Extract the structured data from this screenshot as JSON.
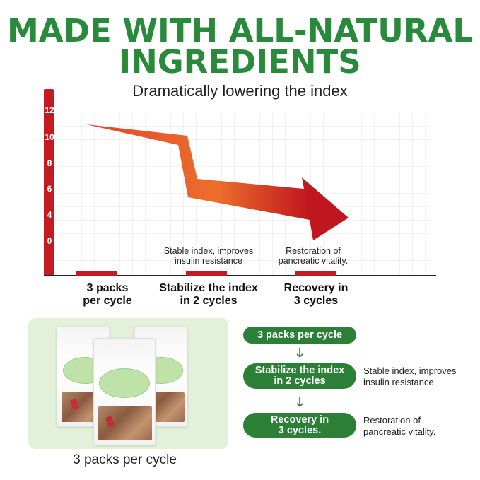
{
  "header": {
    "title_line1": "MADE WITH ALL-NATURAL",
    "title_line2": "INGREDIENTS",
    "subtitle": "Dramatically lowering the index"
  },
  "chart": {
    "y_ticks": [
      "12",
      "10",
      "8",
      "6",
      "4",
      "0"
    ],
    "notes": [
      {
        "line1": "Stable index, improves",
        "line2": "insulin resistance"
      },
      {
        "line1": "Restoration of",
        "line2": "pancreatic vitality."
      }
    ],
    "categories": [
      {
        "line1": "3 packs",
        "line2": "per cycle"
      },
      {
        "line1": "Stabilize the index",
        "line2": "in 2 cycles"
      },
      {
        "line1": "Recovery in",
        "line2": "3 cycles"
      }
    ],
    "colors": {
      "axis": "#c41a22",
      "arrow_start": "#e5452c",
      "arrow_mid": "#ec6e2c",
      "arrow_end": "#c0161e"
    }
  },
  "product": {
    "caption": "3 packs per cycle",
    "panel_color": "#e3f1da"
  },
  "flow": {
    "steps": [
      {
        "line1": "3 packs per cycle",
        "line2": "",
        "side1": "",
        "side2": ""
      },
      {
        "line1": "Stabilize the index",
        "line2": "in 2 cycles",
        "side1": "Stable index, improves",
        "side2": "insulin resistance"
      },
      {
        "line1": "Recovery in",
        "line2": "3 cycles.",
        "side1": "Restoration of",
        "side2": "pancreatic vitality."
      }
    ],
    "arrow_glyph": "🡓",
    "color": "#2b7f36"
  }
}
